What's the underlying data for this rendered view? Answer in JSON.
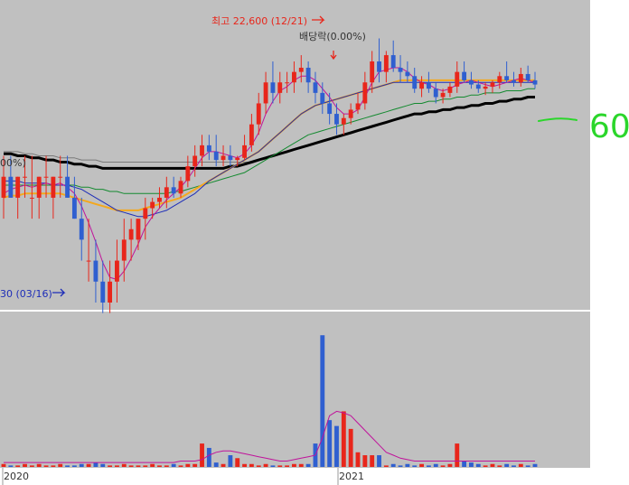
{
  "chart_data": {
    "type": "candlestick",
    "colors": {
      "panel_bg": "#c0c0c0",
      "up": "#e8261b",
      "down": "#2f5fd0",
      "ma_5": "#c0139b",
      "ma_20": "#1d2db8",
      "ma_60": "#f4a81d",
      "ma_120": "#148a30",
      "ma_240": "#000000",
      "ma_long": "#7a7a7a",
      "annotation_red": "#e8261b",
      "annotation_blue": "#1d2db8",
      "handwriting": "#2bd62b"
    },
    "annotations": {
      "high": "최고 22,600 (12/21)",
      "dividend": "배당락(0.00%)",
      "low": "30 (03/16)",
      "left_pct": "00%)",
      "handwritten": "60"
    },
    "x_axis": {
      "ticks": [
        "2020",
        "2021"
      ]
    },
    "price_ylim": [
      10000,
      24000
    ],
    "volume_ylim": [
      0,
      100
    ],
    "candles": [
      [
        15,
        17,
        14,
        16
      ],
      [
        16,
        17,
        15,
        15
      ],
      [
        15,
        16,
        14,
        16
      ],
      [
        16,
        17,
        15,
        16
      ],
      [
        15,
        17,
        14,
        15
      ],
      [
        15,
        16,
        14,
        16
      ],
      [
        16,
        17,
        15,
        16
      ],
      [
        15,
        16,
        14,
        16
      ],
      [
        16,
        17,
        15,
        16
      ],
      [
        16,
        17,
        15,
        15
      ],
      [
        15,
        16,
        14,
        14
      ],
      [
        14,
        15,
        12,
        13
      ],
      [
        12,
        14,
        11,
        12
      ],
      [
        12,
        13,
        10,
        11
      ],
      [
        11,
        12,
        9.5,
        10
      ],
      [
        10,
        12,
        9.5,
        11
      ],
      [
        11,
        13,
        10,
        12
      ],
      [
        12,
        14,
        11,
        13
      ],
      [
        13,
        14,
        12,
        13.5
      ],
      [
        13,
        14,
        12.5,
        14
      ],
      [
        14,
        15,
        13,
        14.5
      ],
      [
        14.5,
        15,
        14,
        14.8
      ],
      [
        14.8,
        15.5,
        14.5,
        15
      ],
      [
        15,
        16,
        14.5,
        15.5
      ],
      [
        15.5,
        16,
        15,
        15.2
      ],
      [
        15.2,
        16,
        15,
        15.8
      ],
      [
        15.8,
        17,
        15.5,
        16.5
      ],
      [
        16.5,
        17.5,
        16,
        17
      ],
      [
        17,
        18,
        16.5,
        17.5
      ],
      [
        17.5,
        18,
        16.8,
        17.2
      ],
      [
        17.2,
        18,
        16.5,
        16.8
      ],
      [
        16.8,
        17.5,
        16.5,
        17
      ],
      [
        17,
        17.5,
        16.5,
        16.8
      ],
      [
        16.8,
        17,
        16.5,
        16.9
      ],
      [
        16.9,
        18,
        16.8,
        17.5
      ],
      [
        17.5,
        19,
        17.2,
        18.5
      ],
      [
        18.5,
        20,
        18,
        19.5
      ],
      [
        19.5,
        21,
        19,
        20.5
      ],
      [
        20.5,
        21.5,
        19.5,
        20
      ],
      [
        20,
        21,
        19.5,
        20.5
      ],
      [
        20.5,
        21,
        20,
        20.5
      ],
      [
        20.5,
        21.5,
        20,
        21
      ],
      [
        21,
        21.8,
        20.5,
        21.2
      ],
      [
        21.2,
        21.5,
        20,
        20.5
      ],
      [
        20.5,
        21,
        19.5,
        20
      ],
      [
        20,
        20.5,
        19,
        19.5
      ],
      [
        19.5,
        20,
        18.5,
        19
      ],
      [
        19,
        19.5,
        18,
        18.5
      ],
      [
        18.5,
        19,
        18,
        18.8
      ],
      [
        18.8,
        19.5,
        18.5,
        19.2
      ],
      [
        19.2,
        20,
        19,
        19.5
      ],
      [
        19.5,
        21,
        19.2,
        20.5
      ],
      [
        20.5,
        22,
        20,
        21.5
      ],
      [
        21.5,
        22.6,
        20.5,
        21
      ],
      [
        21,
        22,
        20.5,
        21.8
      ],
      [
        21.8,
        22.5,
        21,
        21.2
      ],
      [
        21.2,
        21.8,
        20.5,
        21
      ],
      [
        21,
        21.5,
        20.5,
        20.8
      ],
      [
        20.8,
        21.2,
        20,
        20.2
      ],
      [
        20.2,
        20.8,
        19.8,
        20.5
      ],
      [
        20.5,
        21,
        20,
        20.2
      ],
      [
        20.2,
        20.5,
        19.5,
        19.8
      ],
      [
        19.8,
        20.2,
        19.5,
        20
      ],
      [
        20,
        20.5,
        19.8,
        20.3
      ],
      [
        20.3,
        21.5,
        20,
        21
      ],
      [
        21,
        21.5,
        20.5,
        20.6
      ],
      [
        20.6,
        21,
        20.2,
        20.4
      ],
      [
        20.4,
        20.6,
        20,
        20.2
      ],
      [
        20.2,
        20.5,
        19.9,
        20.3
      ],
      [
        20.3,
        20.6,
        20,
        20.5
      ],
      [
        20.5,
        21,
        20.2,
        20.8
      ],
      [
        20.8,
        21.5,
        20.5,
        20.6
      ],
      [
        20.6,
        21,
        20.3,
        20.5
      ],
      [
        20.5,
        21.2,
        20.3,
        20.9
      ],
      [
        20.9,
        21.3,
        20.5,
        20.6
      ],
      [
        20.6,
        21,
        20.2,
        20.4
      ]
    ],
    "moving_averages": {
      "ma_5": [
        15.2,
        15.4,
        15.5,
        15.6,
        15.5,
        15.6,
        15.7,
        15.6,
        15.7,
        15.5,
        15.2,
        14.6,
        13.8,
        12.9,
        11.9,
        11.2,
        11.1,
        11.5,
        12.1,
        12.8,
        13.6,
        14.1,
        14.5,
        14.9,
        15.2,
        15.5,
        15.9,
        16.4,
        16.9,
        17.2,
        17.2,
        17.1,
        17,
        16.9,
        17.1,
        17.5,
        18.1,
        19,
        19.6,
        20.1,
        20.3,
        20.6,
        20.8,
        20.8,
        20.6,
        20.2,
        19.8,
        19.3,
        19,
        19,
        19.2,
        19.8,
        20.5,
        21,
        21.1,
        21.2,
        21.2,
        21,
        20.7,
        20.5,
        20.4,
        20.2,
        20.1,
        20.2,
        20.4,
        20.5,
        20.6,
        20.5,
        20.4,
        20.3,
        20.4,
        20.5,
        20.6,
        20.7,
        20.6,
        20.5
      ],
      "ma_20": [
        15.8,
        15.8,
        15.8,
        15.7,
        15.7,
        15.7,
        15.7,
        15.6,
        15.6,
        15.6,
        15.5,
        15.4,
        15.2,
        15,
        14.8,
        14.6,
        14.4,
        14.3,
        14.2,
        14.1,
        14.1,
        14.2,
        14.3,
        14.4,
        14.6,
        14.8,
        15,
        15.2,
        15.5,
        15.8,
        16,
        16.2,
        16.4,
        16.6,
        16.8,
        17,
        17.2,
        17.5,
        17.8,
        18.1,
        18.4,
        18.7,
        19,
        19.2,
        19.4,
        19.5,
        19.6,
        19.7,
        19.8,
        19.9,
        20,
        20.1,
        20.2,
        20.3,
        20.4,
        20.5,
        20.5,
        20.5,
        20.5,
        20.5,
        20.5,
        20.5,
        20.5,
        20.5,
        20.5,
        20.5,
        20.5,
        20.5,
        20.5,
        20.5,
        20.5,
        20.5,
        20.5,
        20.5,
        20.5,
        20.5
      ],
      "ma_60": [
        15,
        15.1,
        15.1,
        15.2,
        15.2,
        15.2,
        15.2,
        15.2,
        15.2,
        15.1,
        15,
        14.9,
        14.8,
        14.7,
        14.6,
        14.5,
        14.4,
        14.4,
        14.4,
        14.4,
        14.5,
        14.6,
        14.7,
        14.8,
        14.9,
        15,
        15.2,
        15.4,
        15.6,
        15.8,
        16,
        16.2,
        16.4,
        16.6,
        16.8,
        17,
        17.2,
        17.5,
        17.8,
        18.1,
        18.4,
        18.7,
        19,
        19.2,
        19.4,
        19.5,
        19.6,
        19.7,
        19.8,
        19.9,
        20,
        20.1,
        20.2,
        20.3,
        20.4,
        20.5,
        20.6,
        20.6,
        20.6,
        20.6,
        20.6,
        20.6,
        20.6,
        20.6,
        20.6,
        20.6,
        20.6,
        20.6,
        20.6,
        20.6,
        20.6,
        20.6,
        20.6,
        20.6,
        20.6,
        20.6
      ],
      "ma_120": [
        15.6,
        15.6,
        15.6,
        15.6,
        15.6,
        15.6,
        15.6,
        15.6,
        15.6,
        15.6,
        15.6,
        15.5,
        15.5,
        15.4,
        15.4,
        15.3,
        15.3,
        15.2,
        15.2,
        15.2,
        15.2,
        15.2,
        15.2,
        15.2,
        15.3,
        15.3,
        15.4,
        15.5,
        15.6,
        15.7,
        15.8,
        15.9,
        16,
        16.1,
        16.2,
        16.4,
        16.6,
        16.8,
        17,
        17.2,
        17.4,
        17.6,
        17.8,
        18,
        18.1,
        18.2,
        18.3,
        18.4,
        18.5,
        18.6,
        18.7,
        18.8,
        18.9,
        19,
        19.1,
        19.2,
        19.3,
        19.4,
        19.5,
        19.5,
        19.6,
        19.6,
        19.7,
        19.7,
        19.8,
        19.8,
        19.9,
        19.9,
        20,
        20,
        20,
        20.1,
        20.1,
        20.1,
        20.2,
        20.2
      ],
      "ma_240": [
        17.1,
        17.1,
        17,
        17,
        16.9,
        16.9,
        16.8,
        16.8,
        16.7,
        16.7,
        16.6,
        16.6,
        16.5,
        16.5,
        16.4,
        16.4,
        16.4,
        16.4,
        16.4,
        16.4,
        16.4,
        16.4,
        16.4,
        16.4,
        16.4,
        16.4,
        16.4,
        16.4,
        16.4,
        16.4,
        16.4,
        16.4,
        16.5,
        16.5,
        16.6,
        16.7,
        16.8,
        16.9,
        17,
        17.1,
        17.2,
        17.3,
        17.4,
        17.5,
        17.6,
        17.7,
        17.8,
        17.9,
        18,
        18.1,
        18.2,
        18.3,
        18.4,
        18.5,
        18.6,
        18.7,
        18.8,
        18.9,
        19,
        19,
        19.1,
        19.1,
        19.2,
        19.2,
        19.3,
        19.3,
        19.4,
        19.4,
        19.5,
        19.5,
        19.6,
        19.6,
        19.7,
        19.7,
        19.8,
        19.8
      ],
      "ma_long": [
        17.2,
        17.2,
        17.2,
        17.1,
        17.1,
        17,
        17,
        17,
        16.9,
        16.9,
        16.9,
        16.8,
        16.8,
        16.8,
        16.7,
        16.7,
        16.7,
        16.7,
        16.7,
        16.7,
        16.7,
        16.7,
        16.7,
        16.7,
        16.7,
        16.7,
        16.7,
        16.7,
        16.7,
        16.7,
        16.7,
        16.7,
        16.7,
        16.7,
        16.7,
        16.7,
        16.8,
        16.9,
        17,
        17.1,
        17.2,
        17.3,
        17.4,
        17.5,
        17.6,
        17.7,
        17.8,
        17.9,
        18,
        18.1,
        18.2,
        18.3,
        18.4,
        18.5,
        18.6,
        18.7,
        18.8,
        18.9,
        19,
        19,
        19.1,
        19.1,
        19.2,
        19.2,
        19.3,
        19.3,
        19.4,
        19.4,
        19.5,
        19.5,
        19.6,
        19.6,
        19.7,
        19.7,
        19.8,
        19.8
      ]
    },
    "volume": {
      "values": [
        2,
        1,
        1,
        2,
        1,
        2,
        1,
        1,
        2,
        1,
        1,
        2,
        2,
        3,
        2,
        1,
        1,
        2,
        1,
        1,
        1,
        2,
        1,
        1,
        2,
        1,
        2,
        2,
        16,
        13,
        3,
        2,
        8,
        6,
        2,
        2,
        1,
        2,
        1,
        1,
        1,
        2,
        2,
        2,
        16,
        90,
        32,
        28,
        38,
        26,
        10,
        8,
        8,
        8,
        1,
        2,
        1,
        2,
        1,
        2,
        1,
        2,
        1,
        2,
        16,
        4,
        3,
        2,
        1,
        2,
        1,
        2,
        1,
        2,
        1,
        2
      ],
      "ma": [
        3,
        3,
        3,
        3,
        3,
        3,
        3,
        3,
        3,
        3,
        3,
        3,
        3,
        3,
        3,
        3,
        3,
        3,
        3,
        3,
        3,
        3,
        3,
        3,
        3,
        4,
        4,
        4,
        5,
        8,
        10,
        11,
        11,
        10,
        9,
        8,
        7,
        6,
        5,
        4,
        4,
        5,
        6,
        7,
        8,
        20,
        35,
        38,
        37,
        35,
        30,
        25,
        20,
        15,
        10,
        8,
        6,
        5,
        4,
        4,
        4,
        4,
        4,
        4,
        4,
        4,
        4,
        4,
        4,
        4,
        4,
        4,
        4,
        4,
        4,
        4
      ]
    }
  }
}
